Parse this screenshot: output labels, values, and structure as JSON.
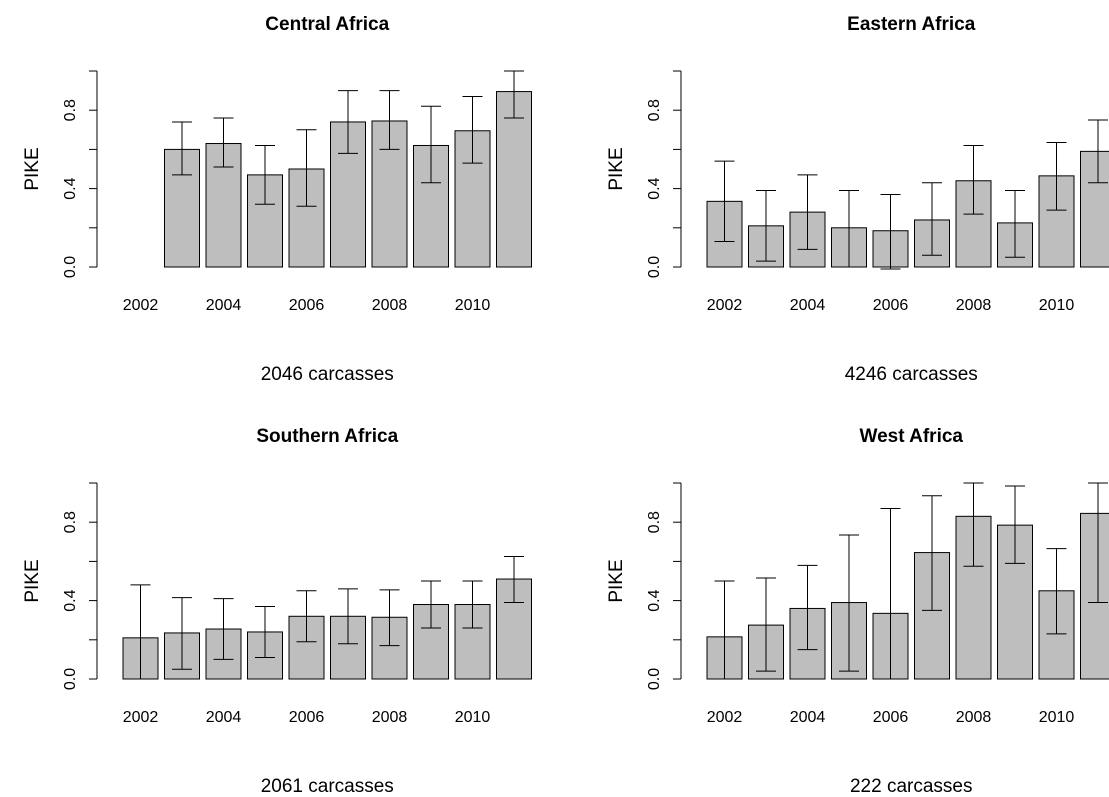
{
  "chart_data": [
    {
      "type": "bar",
      "title": "Central Africa",
      "ylabel": "PIKE",
      "xlabel": "2046 carcasses",
      "ylim": [
        0,
        1
      ],
      "yticks": [
        "0.0",
        "0.4",
        "0.8"
      ],
      "categories": [
        "2002",
        "2003",
        "2004",
        "2005",
        "2006",
        "2007",
        "2008",
        "2009",
        "2010",
        "2011"
      ],
      "x_tick_labels": [
        "2002",
        "2004",
        "2006",
        "2008",
        "2010"
      ],
      "values": [
        0.0,
        0.6,
        0.63,
        0.47,
        0.5,
        0.74,
        0.745,
        0.62,
        0.695,
        0.895
      ],
      "error_low": [
        0.0,
        0.47,
        0.51,
        0.32,
        0.31,
        0.58,
        0.6,
        0.43,
        0.53,
        0.76
      ],
      "error_high": [
        0.0,
        0.74,
        0.76,
        0.62,
        0.7,
        0.9,
        0.9,
        0.82,
        0.87,
        1.0
      ]
    },
    {
      "type": "bar",
      "title": "Eastern Africa",
      "ylabel": "PIKE",
      "xlabel": "4246 carcasses",
      "ylim": [
        0,
        1
      ],
      "yticks": [
        "0.0",
        "0.4",
        "0.8"
      ],
      "categories": [
        "2002",
        "2003",
        "2004",
        "2005",
        "2006",
        "2007",
        "2008",
        "2009",
        "2010",
        "2011"
      ],
      "x_tick_labels": [
        "2002",
        "2004",
        "2006",
        "2008",
        "2010"
      ],
      "values": [
        0.335,
        0.21,
        0.28,
        0.2,
        0.185,
        0.24,
        0.44,
        0.225,
        0.465,
        0.59
      ],
      "error_low": [
        0.13,
        0.03,
        0.09,
        0.0,
        -0.01,
        0.06,
        0.27,
        0.05,
        0.29,
        0.43
      ],
      "error_high": [
        0.54,
        0.39,
        0.47,
        0.39,
        0.37,
        0.43,
        0.62,
        0.39,
        0.635,
        0.75
      ]
    },
    {
      "type": "bar",
      "title": "Southern Africa",
      "ylabel": "PIKE",
      "xlabel": "2061 carcasses",
      "ylim": [
        0,
        1
      ],
      "yticks": [
        "0.0",
        "0.4",
        "0.8"
      ],
      "categories": [
        "2002",
        "2003",
        "2004",
        "2005",
        "2006",
        "2007",
        "2008",
        "2009",
        "2010",
        "2011"
      ],
      "x_tick_labels": [
        "2002",
        "2004",
        "2006",
        "2008",
        "2010"
      ],
      "values": [
        0.21,
        0.235,
        0.255,
        0.24,
        0.32,
        0.32,
        0.315,
        0.38,
        0.38,
        0.51
      ],
      "error_low": [
        0.0,
        0.05,
        0.1,
        0.11,
        0.19,
        0.18,
        0.17,
        0.26,
        0.26,
        0.39
      ],
      "error_high": [
        0.48,
        0.415,
        0.41,
        0.37,
        0.45,
        0.46,
        0.455,
        0.5,
        0.5,
        0.625
      ]
    },
    {
      "type": "bar",
      "title": "West Africa",
      "ylabel": "PIKE",
      "xlabel": "222 carcasses",
      "ylim": [
        0,
        1
      ],
      "yticks": [
        "0.0",
        "0.4",
        "0.8"
      ],
      "categories": [
        "2002",
        "2003",
        "2004",
        "2005",
        "2006",
        "2007",
        "2008",
        "2009",
        "2010",
        "2011"
      ],
      "x_tick_labels": [
        "2002",
        "2004",
        "2006",
        "2008",
        "2010"
      ],
      "values": [
        0.215,
        0.275,
        0.36,
        0.39,
        0.335,
        0.645,
        0.83,
        0.785,
        0.45,
        0.845
      ],
      "error_low": [
        0.0,
        0.04,
        0.15,
        0.04,
        0.0,
        0.35,
        0.575,
        0.59,
        0.23,
        0.39
      ],
      "error_high": [
        0.5,
        0.515,
        0.58,
        0.735,
        0.87,
        0.935,
        1.0,
        0.985,
        0.665,
        1.0
      ]
    }
  ]
}
